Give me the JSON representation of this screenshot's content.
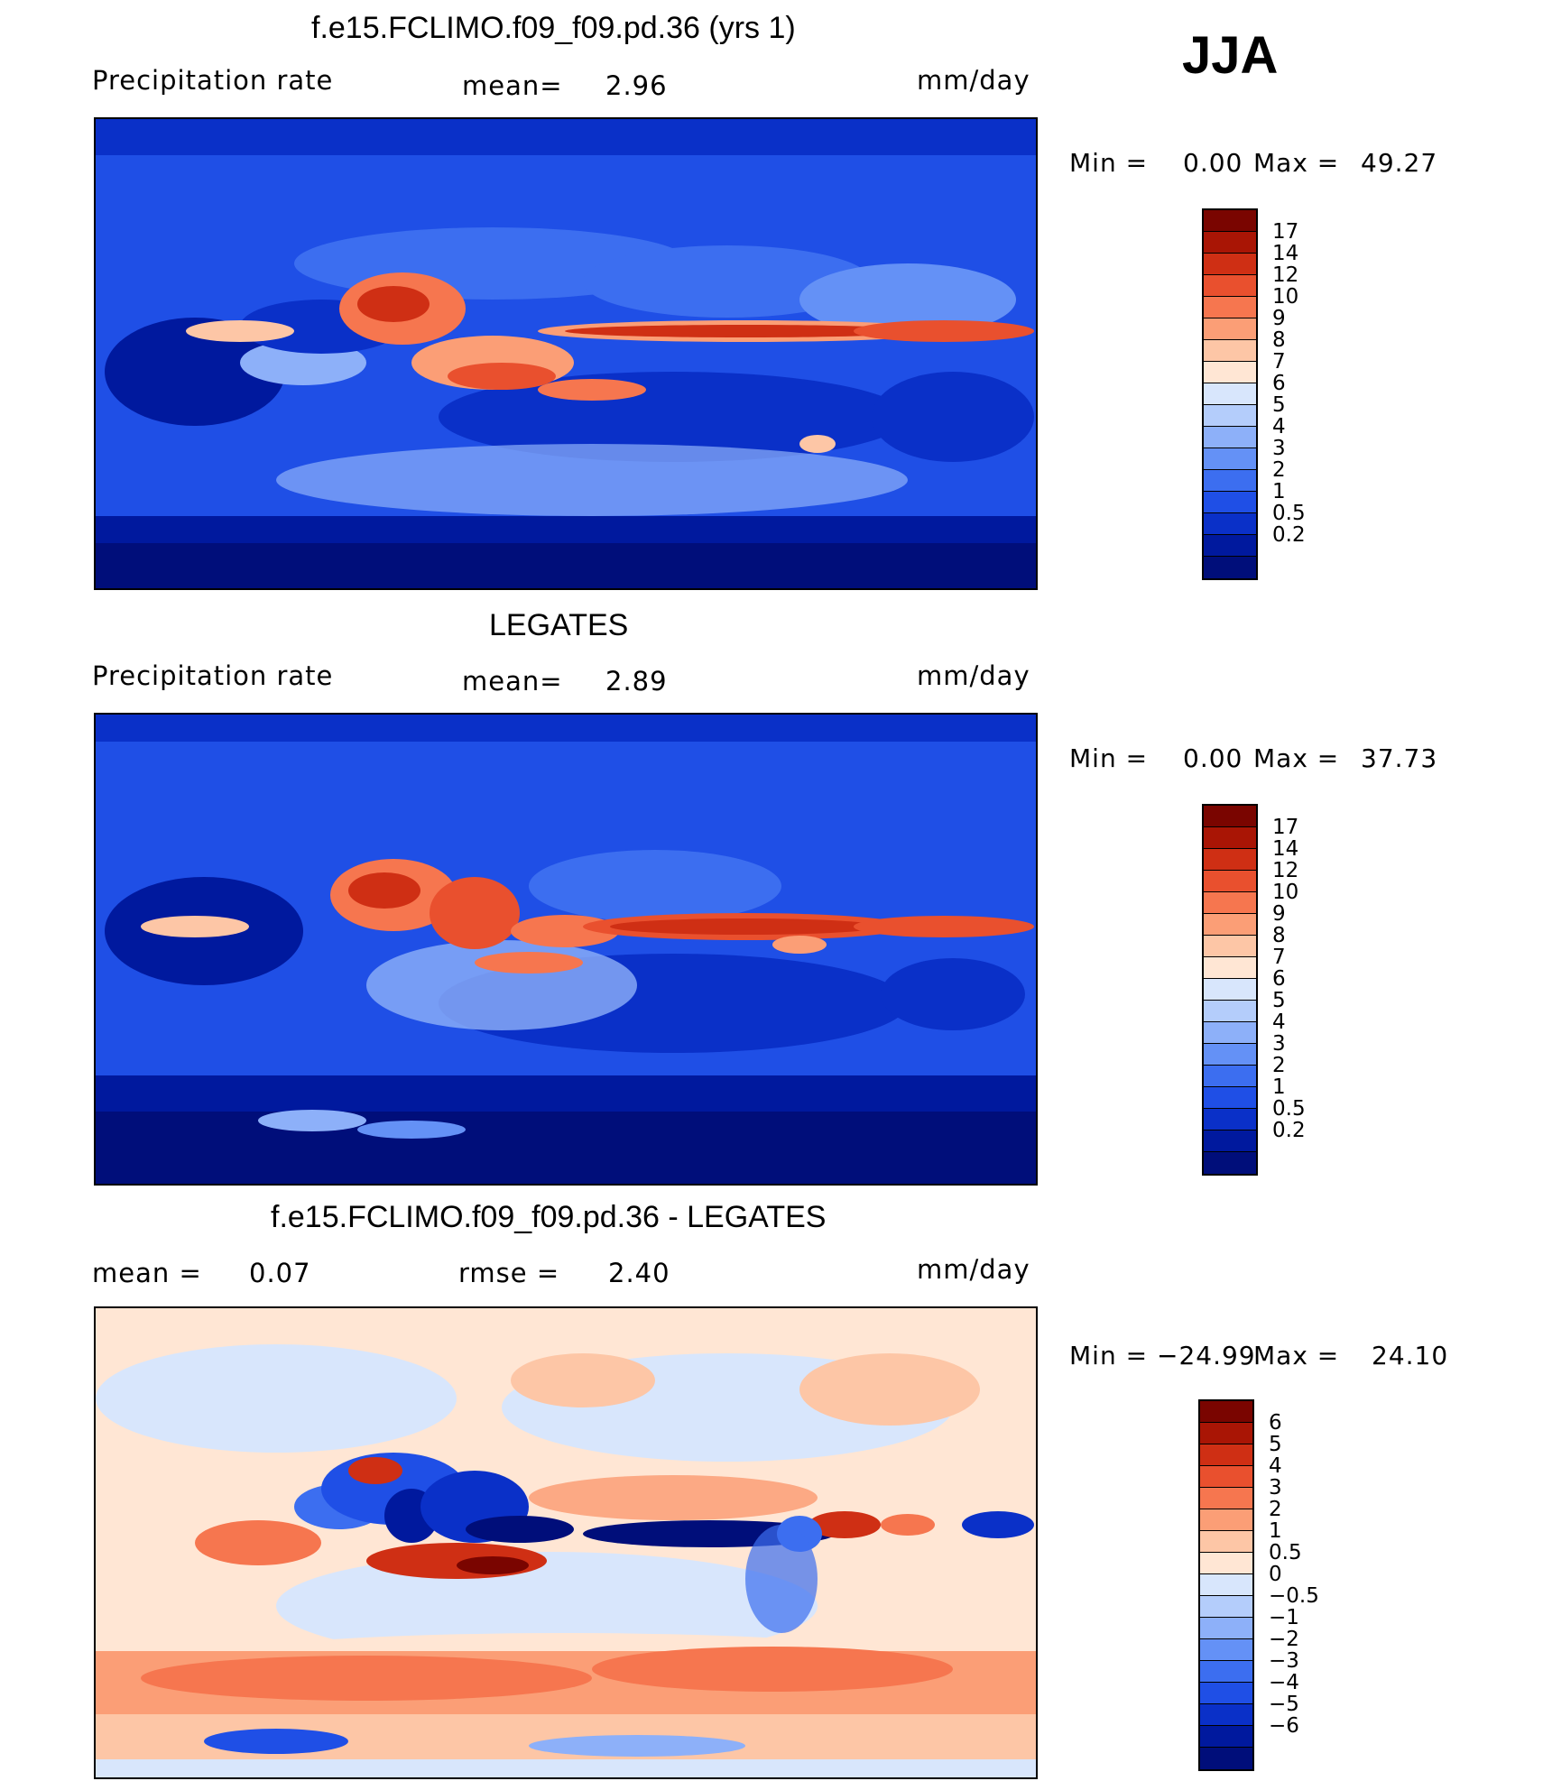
{
  "season": "JJA",
  "panels": [
    {
      "title": "f.e15.FCLIMO.f09_f09.pd.36 (yrs 1)",
      "left_label": "Precipitation rate",
      "mid_label": "mean=",
      "mid_value": "2.96",
      "right_extra_label": "",
      "right_extra_value": "",
      "units": "mm/day",
      "min_label": "Min =",
      "min_value": "0.00",
      "max_label": "Max =",
      "max_value": "49.27"
    },
    {
      "title": "LEGATES",
      "left_label": "Precipitation rate",
      "mid_label": "mean=",
      "mid_value": "2.89",
      "units": "mm/day",
      "min_label": "Min =",
      "min_value": "0.00",
      "max_label": "Max =",
      "max_value": "37.73"
    },
    {
      "title": "f.e15.FCLIMO.f09_f09.pd.36 - LEGATES",
      "left_label": "mean =",
      "left_value": "0.07",
      "mid_label": "rmse =",
      "mid_value": "2.40",
      "units": "mm/day",
      "min_label": "Min =",
      "min_value": "−24.99",
      "max_label": "Max =",
      "max_value": "24.10"
    }
  ],
  "chart_data": [
    {
      "type": "heatmap",
      "title": "f.e15.FCLIMO.f09_f09.pd.36 (yrs 1)",
      "variable": "Precipitation rate",
      "units": "mm/day",
      "mean": 2.96,
      "min": 0.0,
      "max": 49.27,
      "contour_levels": [
        "0.2",
        "0.5",
        "1",
        "2",
        "3",
        "4",
        "5",
        "6",
        "7",
        "8",
        "9",
        "10",
        "12",
        "14",
        "17"
      ],
      "colors": [
        "#000e7a",
        "#00199e",
        "#0a30c8",
        "#1f4fe6",
        "#3c6ef0",
        "#6491f6",
        "#8db0f9",
        "#b4cdfb",
        "#d8e6fc",
        "#ffe6d4",
        "#fdc6a6",
        "#fb9e76",
        "#f6764f",
        "#e9502e",
        "#cf2f14",
        "#a91505",
        "#7a0500"
      ]
    },
    {
      "type": "heatmap",
      "title": "LEGATES",
      "variable": "Precipitation rate",
      "units": "mm/day",
      "mean": 2.89,
      "min": 0.0,
      "max": 37.73,
      "contour_levels": [
        "0.2",
        "0.5",
        "1",
        "2",
        "3",
        "4",
        "5",
        "6",
        "7",
        "8",
        "9",
        "10",
        "12",
        "14",
        "17"
      ],
      "colors": [
        "#000e7a",
        "#00199e",
        "#0a30c8",
        "#1f4fe6",
        "#3c6ef0",
        "#6491f6",
        "#8db0f9",
        "#b4cdfb",
        "#d8e6fc",
        "#ffe6d4",
        "#fdc6a6",
        "#fb9e76",
        "#f6764f",
        "#e9502e",
        "#cf2f14",
        "#a91505",
        "#7a0500"
      ]
    },
    {
      "type": "heatmap",
      "title": "f.e15.FCLIMO.f09_f09.pd.36 - LEGATES",
      "units": "mm/day",
      "mean": 0.07,
      "rmse": 2.4,
      "min": -24.99,
      "max": 24.1,
      "contour_levels": [
        "−6",
        "−5",
        "−4",
        "−3",
        "−2",
        "−1",
        "−0.5",
        "0",
        "0.5",
        "1",
        "2",
        "3",
        "4",
        "5",
        "6"
      ],
      "colors": [
        "#000e7a",
        "#00199e",
        "#0a30c8",
        "#1f4fe6",
        "#3c6ef0",
        "#6491f6",
        "#8db0f9",
        "#b4cdfb",
        "#d8e6fc",
        "#ffe6d4",
        "#fdc6a6",
        "#fb9e76",
        "#f6764f",
        "#e9502e",
        "#cf2f14",
        "#a91505",
        "#7a0500"
      ]
    }
  ]
}
